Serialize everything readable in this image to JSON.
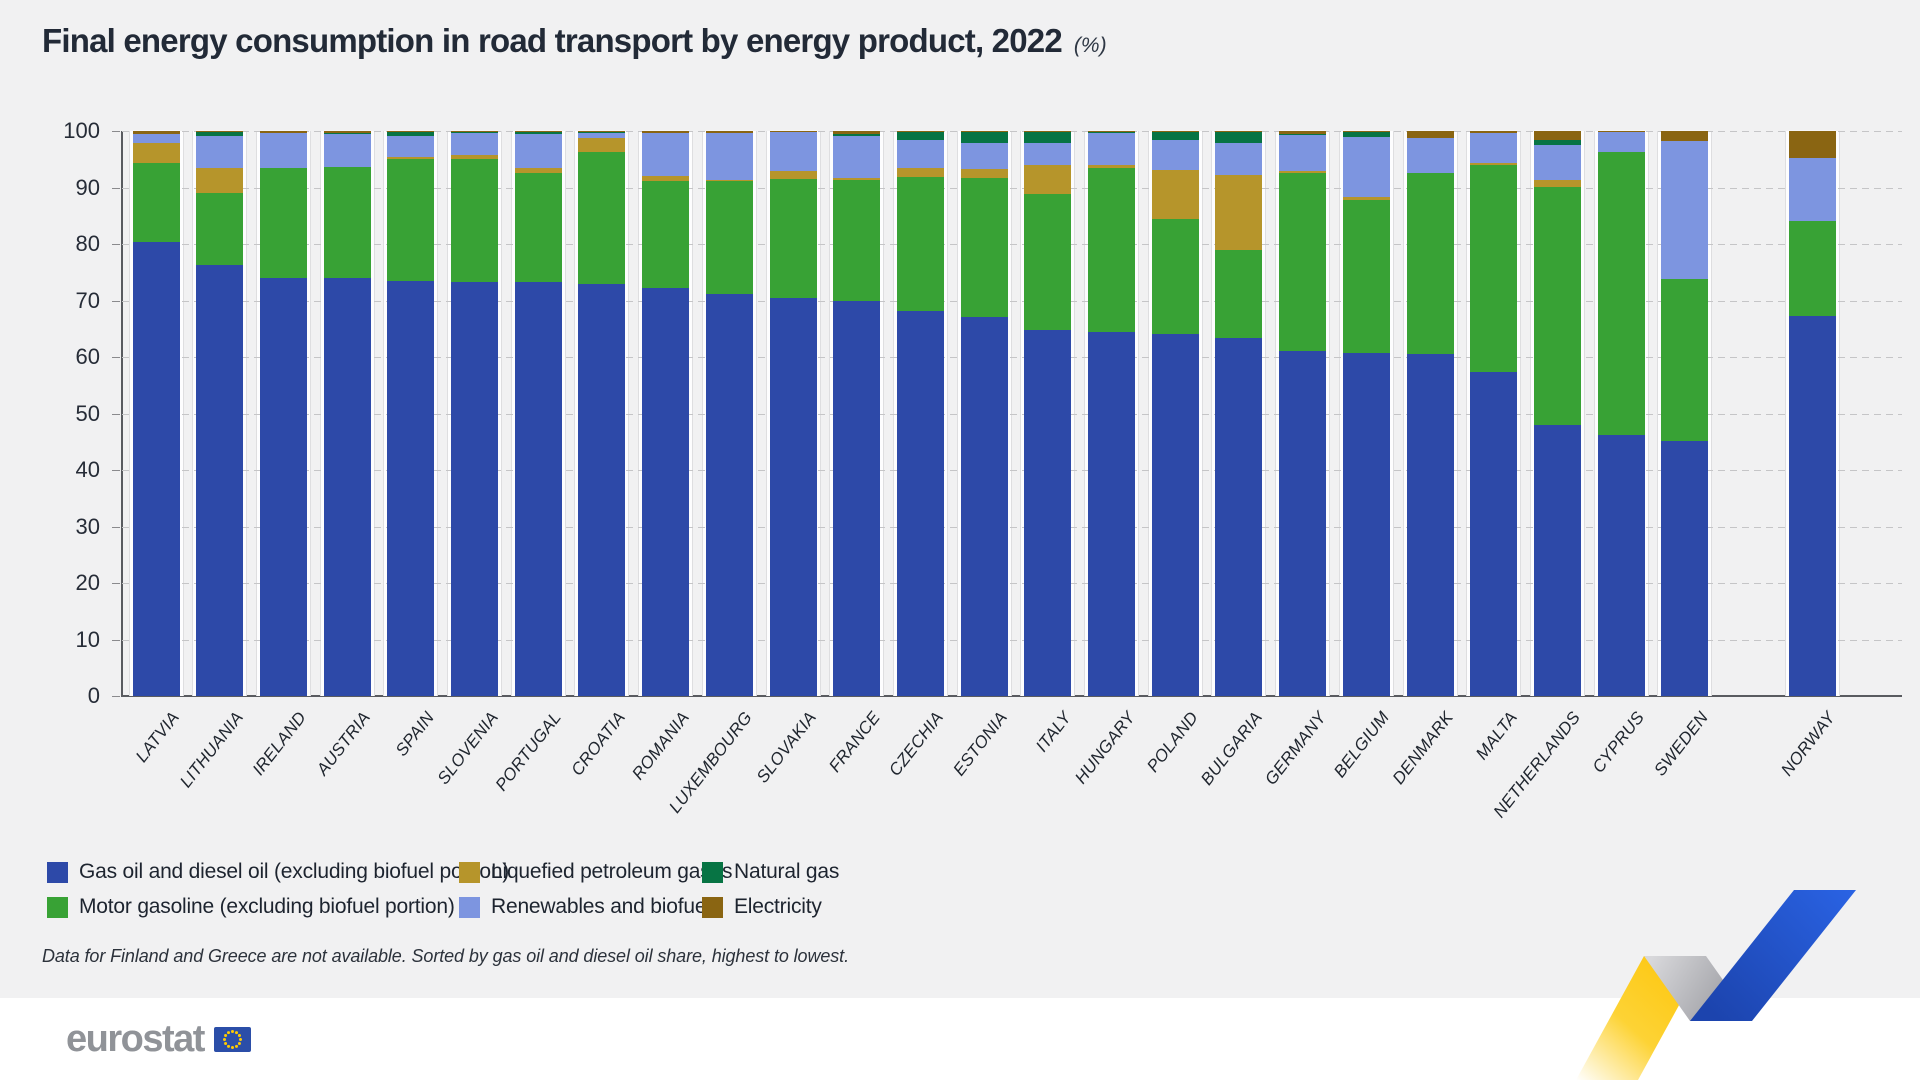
{
  "title": "Final energy consumption in road transport by energy product, 2022",
  "title_suffix": "(%)",
  "footnote": "Data for Finland and Greece are not available. Sorted by gas oil and diesel oil share, highest to lowest.",
  "logo_text": "eurostat",
  "colors": {
    "page_background": "#f1f1f2",
    "column_background": "#fdfdfe",
    "gridline": "#c5c5c7",
    "axis": "#595b60",
    "title_text": "#222a37",
    "eu_flag_blue": "#2b4ea8",
    "eu_star_yellow": "#ffcc00",
    "logo_gray": "#909398",
    "ribbon_yellow": "#fdc90b",
    "ribbon_blue": "#2357cf",
    "ribbon_gray": "#a9aaaf"
  },
  "legend_rows": [
    [
      "diesel",
      "lpg",
      "natural_gas"
    ],
    [
      "gasoline",
      "renewables",
      "electricity"
    ]
  ],
  "chart_data": {
    "type": "bar",
    "stacked": true,
    "title": "Final energy consumption in road transport by energy product, 2022 (%)",
    "xlabel": "",
    "ylabel": "",
    "ylim": [
      0,
      100
    ],
    "yticks": [
      0,
      10,
      20,
      30,
      40,
      50,
      60,
      70,
      80,
      90,
      100
    ],
    "grid": "horizontal-dashed",
    "legend_position": "bottom",
    "categories": [
      "LATVIA",
      "LITHUANIA",
      "IRELAND",
      "AUSTRIA",
      "SPAIN",
      "SLOVENIA",
      "PORTUGAL",
      "CROATIA",
      "ROMANIA",
      "LUXEMBOURG",
      "SLOVAKIA",
      "FRANCE",
      "CZECHIA",
      "ESTONIA",
      "ITALY",
      "HUNGARY",
      "POLAND",
      "BULGARIA",
      "GERMANY",
      "BELGIUM",
      "DENMARK",
      "MALTA",
      "NETHERLANDS",
      "CYPRUS",
      "SWEDEN",
      "",
      "NORWAY"
    ],
    "series": [
      {
        "key": "diesel",
        "name": "Gas oil and diesel oil (excluding biofuel portion)",
        "color": "#2d49a8",
        "values": [
          80.3,
          76.2,
          74.0,
          73.9,
          73.5,
          73.2,
          73.2,
          72.9,
          72.3,
          71.1,
          70.4,
          69.9,
          68.1,
          67.0,
          64.8,
          64.5,
          64.0,
          63.4,
          61.0,
          60.7,
          60.5,
          57.4,
          48.0,
          46.2,
          45.1,
          null,
          67.3
        ]
      },
      {
        "key": "gasoline",
        "name": "Motor gasoline (excluding biofuel portion)",
        "color": "#38a235",
        "values": [
          14.0,
          12.8,
          19.4,
          19.7,
          21.5,
          21.8,
          19.3,
          23.4,
          18.9,
          20.2,
          21.1,
          21.4,
          23.8,
          24.7,
          24.0,
          28.9,
          20.5,
          15.5,
          31.5,
          27.1,
          32.0,
          36.6,
          42.1,
          50.0,
          28.7,
          null,
          16.8
        ]
      },
      {
        "key": "lpg",
        "name": "Liquefied petroleum gases",
        "color": "#b6952b",
        "values": [
          3.5,
          4.5,
          0.0,
          0.0,
          0.4,
          0.8,
          0.9,
          2.5,
          0.9,
          0.1,
          1.5,
          0.4,
          1.5,
          1.5,
          5.1,
          0.5,
          8.6,
          13.3,
          0.4,
          0.6,
          0.0,
          0.4,
          1.3,
          0.0,
          0.0,
          null,
          0.0
        ]
      },
      {
        "key": "renewables",
        "name": "Renewables and biofuels",
        "color": "#7d95e0",
        "values": [
          1.7,
          5.7,
          6.2,
          5.9,
          3.8,
          3.8,
          6.0,
          0.9,
          7.5,
          8.2,
          6.9,
          7.4,
          5.0,
          4.6,
          3.9,
          5.7,
          5.3,
          5.6,
          6.4,
          10.6,
          6.2,
          5.2,
          6.2,
          3.6,
          24.4,
          null,
          11.1
        ]
      },
      {
        "key": "natural_gas",
        "name": "Natural gas",
        "color": "#077444",
        "values": [
          0.0,
          0.6,
          0.0,
          0.1,
          0.6,
          0.2,
          0.4,
          0.1,
          0.0,
          0.0,
          0.0,
          0.3,
          1.4,
          2.0,
          2.0,
          0.2,
          1.4,
          2.1,
          0.2,
          0.8,
          0.0,
          0.0,
          0.8,
          0.0,
          0.0,
          null,
          0.0
        ]
      },
      {
        "key": "electricity",
        "name": "Electricity",
        "color": "#8a6512",
        "values": [
          0.5,
          0.2,
          0.4,
          0.4,
          0.2,
          0.2,
          0.2,
          0.2,
          0.4,
          0.4,
          0.1,
          0.6,
          0.2,
          0.2,
          0.2,
          0.2,
          0.2,
          0.1,
          0.5,
          0.2,
          1.3,
          0.4,
          1.6,
          0.2,
          1.8,
          null,
          4.8
        ]
      }
    ]
  }
}
